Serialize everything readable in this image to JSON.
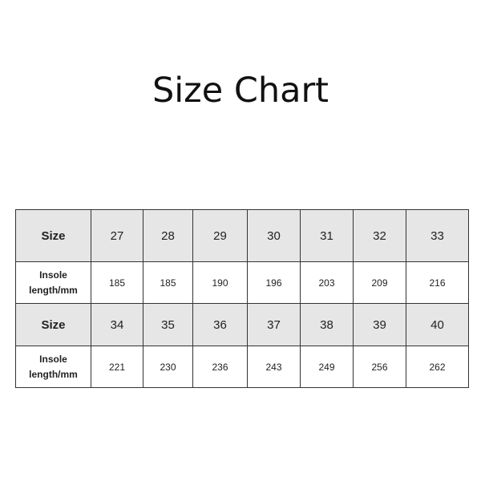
{
  "title": "Size Chart",
  "rows": [
    {
      "label": "Size",
      "values": [
        "27",
        "28",
        "29",
        "30",
        "31",
        "32",
        "33"
      ]
    },
    {
      "label": "Insole length/mm",
      "values": [
        "185",
        "185",
        "190",
        "196",
        "203",
        "209",
        "216"
      ]
    },
    {
      "label": "Size",
      "values": [
        "34",
        "35",
        "36",
        "37",
        "38",
        "39",
        "40"
      ]
    },
    {
      "label": "Insole length/mm",
      "values": [
        "221",
        "230",
        "236",
        "243",
        "249",
        "256",
        "262"
      ]
    }
  ]
}
